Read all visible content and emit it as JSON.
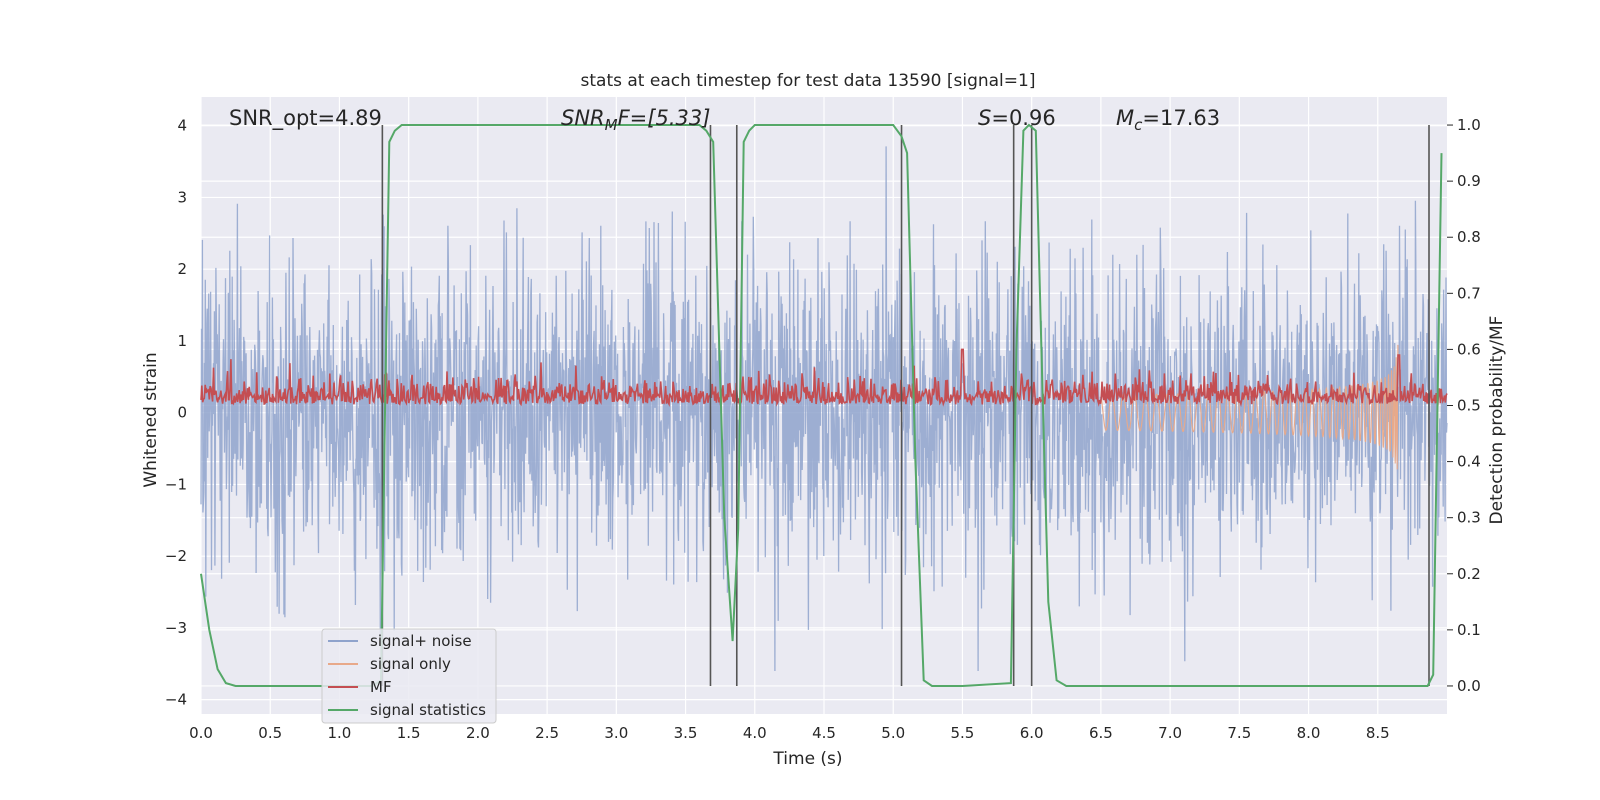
{
  "chart_data": {
    "type": "line",
    "title": "stats at each timestep for test data 13590 [signal=1]",
    "xlabel": "Time (s)",
    "ylabel": "Whitened strain",
    "y2label": "Detection probability/MF",
    "xlim": [
      0.0,
      9.0
    ],
    "ylim": [
      -4.2,
      4.4
    ],
    "y2lim": [
      -0.05,
      1.05
    ],
    "xticks": [
      "0.0",
      "0.5",
      "1.0",
      "1.5",
      "2.0",
      "2.5",
      "3.0",
      "3.5",
      "4.0",
      "4.5",
      "5.0",
      "5.5",
      "6.0",
      "6.5",
      "7.0",
      "7.5",
      "8.0",
      "8.5"
    ],
    "xtick_values": [
      0.0,
      0.5,
      1.0,
      1.5,
      2.0,
      2.5,
      3.0,
      3.5,
      4.0,
      4.5,
      5.0,
      5.5,
      6.0,
      6.5,
      7.0,
      7.5,
      8.0,
      8.5
    ],
    "yticks": [
      "−4",
      "−3",
      "−2",
      "−1",
      "0",
      "1",
      "2",
      "3",
      "4"
    ],
    "ytick_values": [
      -4,
      -3,
      -2,
      -1,
      0,
      1,
      2,
      3,
      4
    ],
    "y2ticks": [
      "0.0",
      "0.1",
      "0.2",
      "0.3",
      "0.4",
      "0.5",
      "0.6",
      "0.7",
      "0.8",
      "0.9",
      "1.0"
    ],
    "y2tick_values": [
      0.0,
      0.1,
      0.2,
      0.3,
      0.4,
      0.5,
      0.6,
      0.7,
      0.8,
      0.9,
      1.0
    ],
    "annotations": {
      "snr_opt": "SNR_opt=4.89",
      "snr_mf_main": "SNR",
      "snr_mf_sub": "M",
      "snr_mf_rest": "F=[5.33]",
      "s_main": "S",
      "s_rest": "=0.96",
      "mc_main": "M",
      "mc_sub": "c",
      "mc_rest": "=17.63"
    },
    "vertical_lines_x": [
      1.31,
      3.68,
      3.87,
      5.06,
      5.87,
      6.0,
      8.87
    ],
    "legend": {
      "placement": "lower-left",
      "entries": [
        {
          "label": "signal+ noise",
          "color": "#8fa3cc"
        },
        {
          "label": "signal only",
          "color": "#e8a98a"
        },
        {
          "label": "MF",
          "color": "#c44e52"
        },
        {
          "label": "signal statistics",
          "color": "#55a868"
        }
      ]
    },
    "series": [
      {
        "name": "signal statistics",
        "axis": "right",
        "color": "#55a868",
        "x": [
          0.0,
          0.06,
          0.12,
          0.18,
          0.25,
          0.5,
          0.8,
          1.1,
          1.24,
          1.3,
          1.33,
          1.36,
          1.4,
          1.45,
          2.0,
          2.5,
          3.0,
          3.5,
          3.6,
          3.65,
          3.7,
          3.78,
          3.84,
          3.88,
          3.92,
          3.96,
          4.0,
          4.5,
          5.0,
          5.06,
          5.1,
          5.16,
          5.22,
          5.28,
          5.5,
          5.85,
          5.89,
          5.94,
          5.98,
          6.03,
          6.07,
          6.12,
          6.18,
          6.25,
          7.0,
          8.0,
          8.86,
          8.9,
          8.96
        ],
        "values": [
          0.2,
          0.1,
          0.03,
          0.005,
          0.0,
          0.0,
          0.0,
          0.0,
          0.0,
          0.01,
          0.5,
          0.97,
          0.99,
          1.0,
          1.0,
          1.0,
          1.0,
          1.0,
          1.0,
          0.99,
          0.97,
          0.3,
          0.08,
          0.28,
          0.97,
          0.99,
          1.0,
          1.0,
          1.0,
          0.98,
          0.95,
          0.4,
          0.01,
          0.0,
          0.0,
          0.005,
          0.6,
          0.99,
          1.0,
          0.99,
          0.6,
          0.15,
          0.01,
          0.0,
          0.0,
          0.0,
          0.0,
          0.02,
          0.95
        ]
      },
      {
        "name": "MF",
        "axis": "right",
        "color": "#c44e52",
        "generated": "noise band approx 0.50–0.57 with spikes near 5.5 s and 8.65 s",
        "x": [
          0.0,
          5.5,
          8.65
        ],
        "values": [
          0.53,
          0.6,
          0.59
        ]
      },
      {
        "name": "signal+ noise",
        "axis": "left",
        "color": "#8fa3cc",
        "generated": "whitened noise, amplitude approx ±2 with peaks to ±4",
        "x": [
          0.0,
          9.0
        ],
        "values": [
          0.0,
          0.0
        ]
      },
      {
        "name": "signal only",
        "axis": "left",
        "color": "#e8a98a",
        "generated": "chirp growing from 6.5 s to merger at 8.65 s, peak approx ±1.2",
        "x": [
          6.5,
          8.65
        ],
        "values": [
          0.05,
          1.2
        ]
      }
    ],
    "grid": true
  }
}
